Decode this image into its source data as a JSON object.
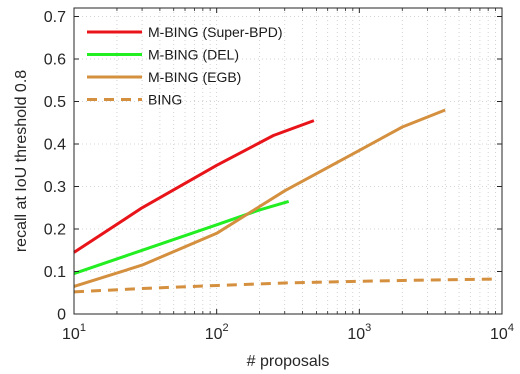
{
  "chart_data": {
    "type": "line",
    "xscale": "log",
    "xlim": [
      10,
      10000
    ],
    "ylim": [
      0,
      0.72
    ],
    "grid": true,
    "legend_position": "top-left",
    "xlabel": "# proposals",
    "ylabel": "recall at IoU threshold 0.8",
    "x_ticks": [
      {
        "base": "10",
        "exp": "1"
      },
      {
        "base": "10",
        "exp": "2"
      },
      {
        "base": "10",
        "exp": "3"
      },
      {
        "base": "10",
        "exp": "4"
      }
    ],
    "y_ticks": [
      "0",
      "0.1",
      "0.2",
      "0.3",
      "0.4",
      "0.5",
      "0.6",
      "0.7"
    ],
    "series": [
      {
        "name": "M-BING (Super-BPD)",
        "color": "#e8141a",
        "style": "solid",
        "points": [
          [
            10,
            0.145
          ],
          [
            30,
            0.25
          ],
          [
            100,
            0.35
          ],
          [
            250,
            0.42
          ],
          [
            480,
            0.455
          ]
        ]
      },
      {
        "name": "M-BING (DEL)",
        "color": "#22ee22",
        "style": "solid",
        "points": [
          [
            10,
            0.095
          ],
          [
            30,
            0.15
          ],
          [
            100,
            0.21
          ],
          [
            200,
            0.245
          ],
          [
            320,
            0.265
          ]
        ]
      },
      {
        "name": "M-BING (EGB)",
        "color": "#d4903e",
        "style": "solid",
        "points": [
          [
            10,
            0.065
          ],
          [
            30,
            0.115
          ],
          [
            100,
            0.19
          ],
          [
            300,
            0.29
          ],
          [
            1000,
            0.385
          ],
          [
            2000,
            0.44
          ],
          [
            4000,
            0.48
          ]
        ]
      },
      {
        "name": "BING",
        "color": "#d4903e",
        "style": "dashed",
        "points": [
          [
            10,
            0.052
          ],
          [
            30,
            0.06
          ],
          [
            100,
            0.067
          ],
          [
            300,
            0.073
          ],
          [
            1000,
            0.077
          ],
          [
            3000,
            0.08
          ],
          [
            9000,
            0.082
          ]
        ]
      }
    ]
  }
}
